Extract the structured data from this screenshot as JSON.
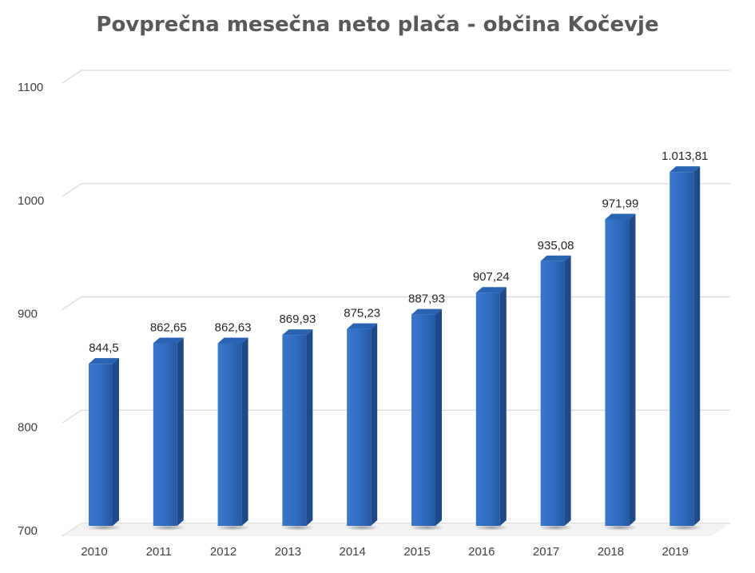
{
  "chart_data": {
    "type": "bar",
    "title": "Povprečna mesečna neto plača - občina Kočevje",
    "xlabel": "",
    "ylabel": "",
    "categories": [
      "2010",
      "2011",
      "2012",
      "2013",
      "2014",
      "2015",
      "2016",
      "2017",
      "2018",
      "2019"
    ],
    "values": [
      844.5,
      862.65,
      862.63,
      869.93,
      875.23,
      887.93,
      907.24,
      935.08,
      971.99,
      1013.81
    ],
    "data_labels": [
      "844,5",
      "862,65",
      "862,63",
      "869,93",
      "875,23",
      "887,93",
      "907,24",
      "935,08",
      "971,99",
      "1.013,81"
    ],
    "ylim": [
      700,
      1100
    ],
    "yticks": [
      700,
      800,
      900,
      1000,
      1100
    ],
    "grid": true,
    "legend": "none",
    "bar_color": "#2E6BBF"
  }
}
